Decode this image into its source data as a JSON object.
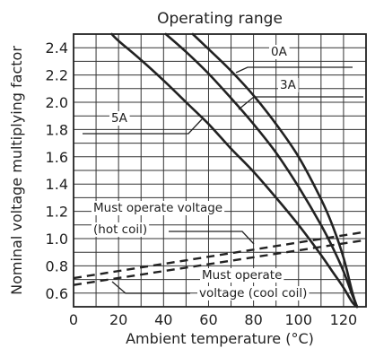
{
  "chart_data": {
    "type": "line",
    "title": "Operating range",
    "xlabel": "Ambient temperature (°C)",
    "ylabel": "Nominal voltage multiplying factor",
    "xlim": [
      0,
      130
    ],
    "ylim": [
      0.5,
      2.5
    ],
    "xticks": [
      0,
      20,
      40,
      60,
      80,
      100,
      120
    ],
    "yticks": [
      0.6,
      0.8,
      1.0,
      1.2,
      1.4,
      1.6,
      1.8,
      2.0,
      2.2,
      2.4
    ],
    "xtick_labels": [
      "0",
      "20",
      "40",
      "60",
      "80",
      "100",
      "120"
    ],
    "ytick_labels": [
      "0.6",
      "0.8",
      "1.0",
      "1.2",
      "1.4",
      "1.6",
      "1.8",
      "2.0",
      "2.2",
      "2.4"
    ],
    "grid": true,
    "legend": "none",
    "series": [
      {
        "name": "0A",
        "style": "solid",
        "x": [
          53,
          60,
          70,
          80,
          90,
          100,
          110,
          115,
          120,
          124,
          126
        ],
        "y": [
          2.5,
          2.39,
          2.23,
          2.05,
          1.84,
          1.6,
          1.29,
          1.1,
          0.86,
          0.6,
          0.5
        ]
      },
      {
        "name": "3A",
        "style": "solid",
        "x": [
          41,
          50,
          60,
          70,
          80,
          90,
          100,
          110,
          115,
          120,
          124,
          126
        ],
        "y": [
          2.5,
          2.37,
          2.21,
          2.03,
          1.84,
          1.63,
          1.38,
          1.1,
          0.94,
          0.76,
          0.58,
          0.5
        ]
      },
      {
        "name": "5A",
        "style": "solid",
        "x": [
          17,
          20,
          30,
          40,
          50,
          60,
          70,
          80,
          90,
          100,
          110,
          115,
          120,
          124,
          126
        ],
        "y": [
          2.5,
          2.45,
          2.31,
          2.16,
          2.0,
          1.84,
          1.66,
          1.49,
          1.3,
          1.1,
          0.88,
          0.76,
          0.64,
          0.53,
          0.5
        ]
      },
      {
        "name": "Must operate voltage (hot coil)",
        "style": "dashed",
        "x": [
          0,
          130
        ],
        "y": [
          0.71,
          1.05
        ]
      },
      {
        "name": "Must operate voltage (cool coil)",
        "style": "dashed",
        "x": [
          0,
          130
        ],
        "y": [
          0.66,
          0.99
        ]
      }
    ],
    "annotations": {
      "0A": "0A",
      "3A": "3A",
      "5A": "5A",
      "hot_line1": "Must operate voltage",
      "hot_line2": "(hot coil)",
      "cool_line1": "Must operate",
      "cool_line2": "voltage (cool coil)"
    }
  }
}
